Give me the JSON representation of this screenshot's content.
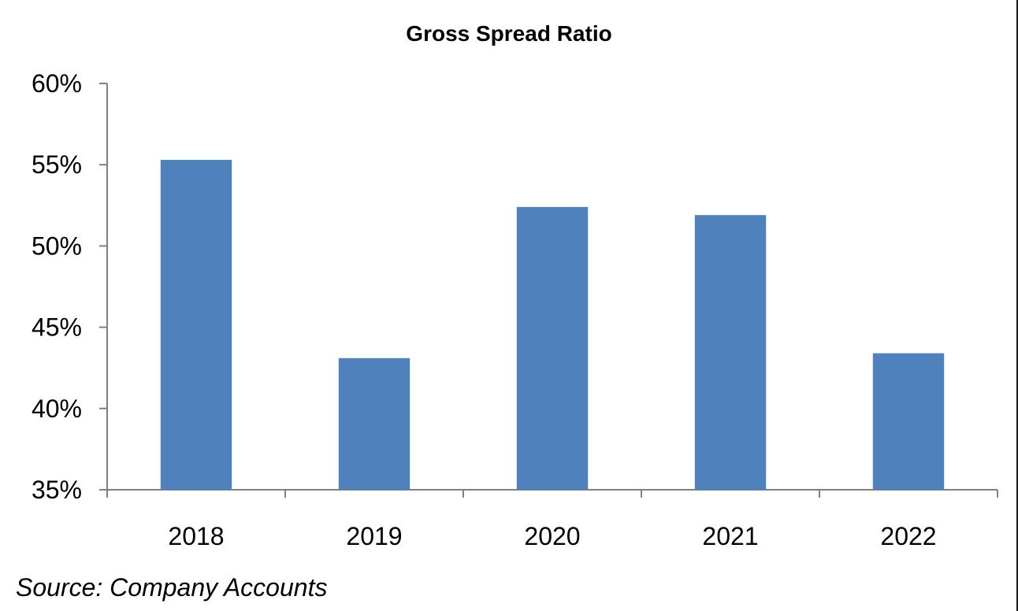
{
  "chart_data": {
    "type": "bar",
    "title": "Gross Spread Ratio",
    "xlabel": "",
    "ylabel": "",
    "categories": [
      "2018",
      "2019",
      "2020",
      "2021",
      "2022"
    ],
    "values": [
      55.3,
      43.1,
      52.4,
      51.9,
      43.4
    ],
    "value_unit": "%",
    "ylim": [
      35,
      60
    ],
    "yticks": [
      35,
      40,
      45,
      50,
      55,
      60
    ],
    "ytick_labels": [
      "35%",
      "40%",
      "45%",
      "50%",
      "55%",
      "60%"
    ],
    "grid": false,
    "legend": "none",
    "bar_color": "#4f81bd"
  },
  "source_note": "Source: Company Accounts"
}
